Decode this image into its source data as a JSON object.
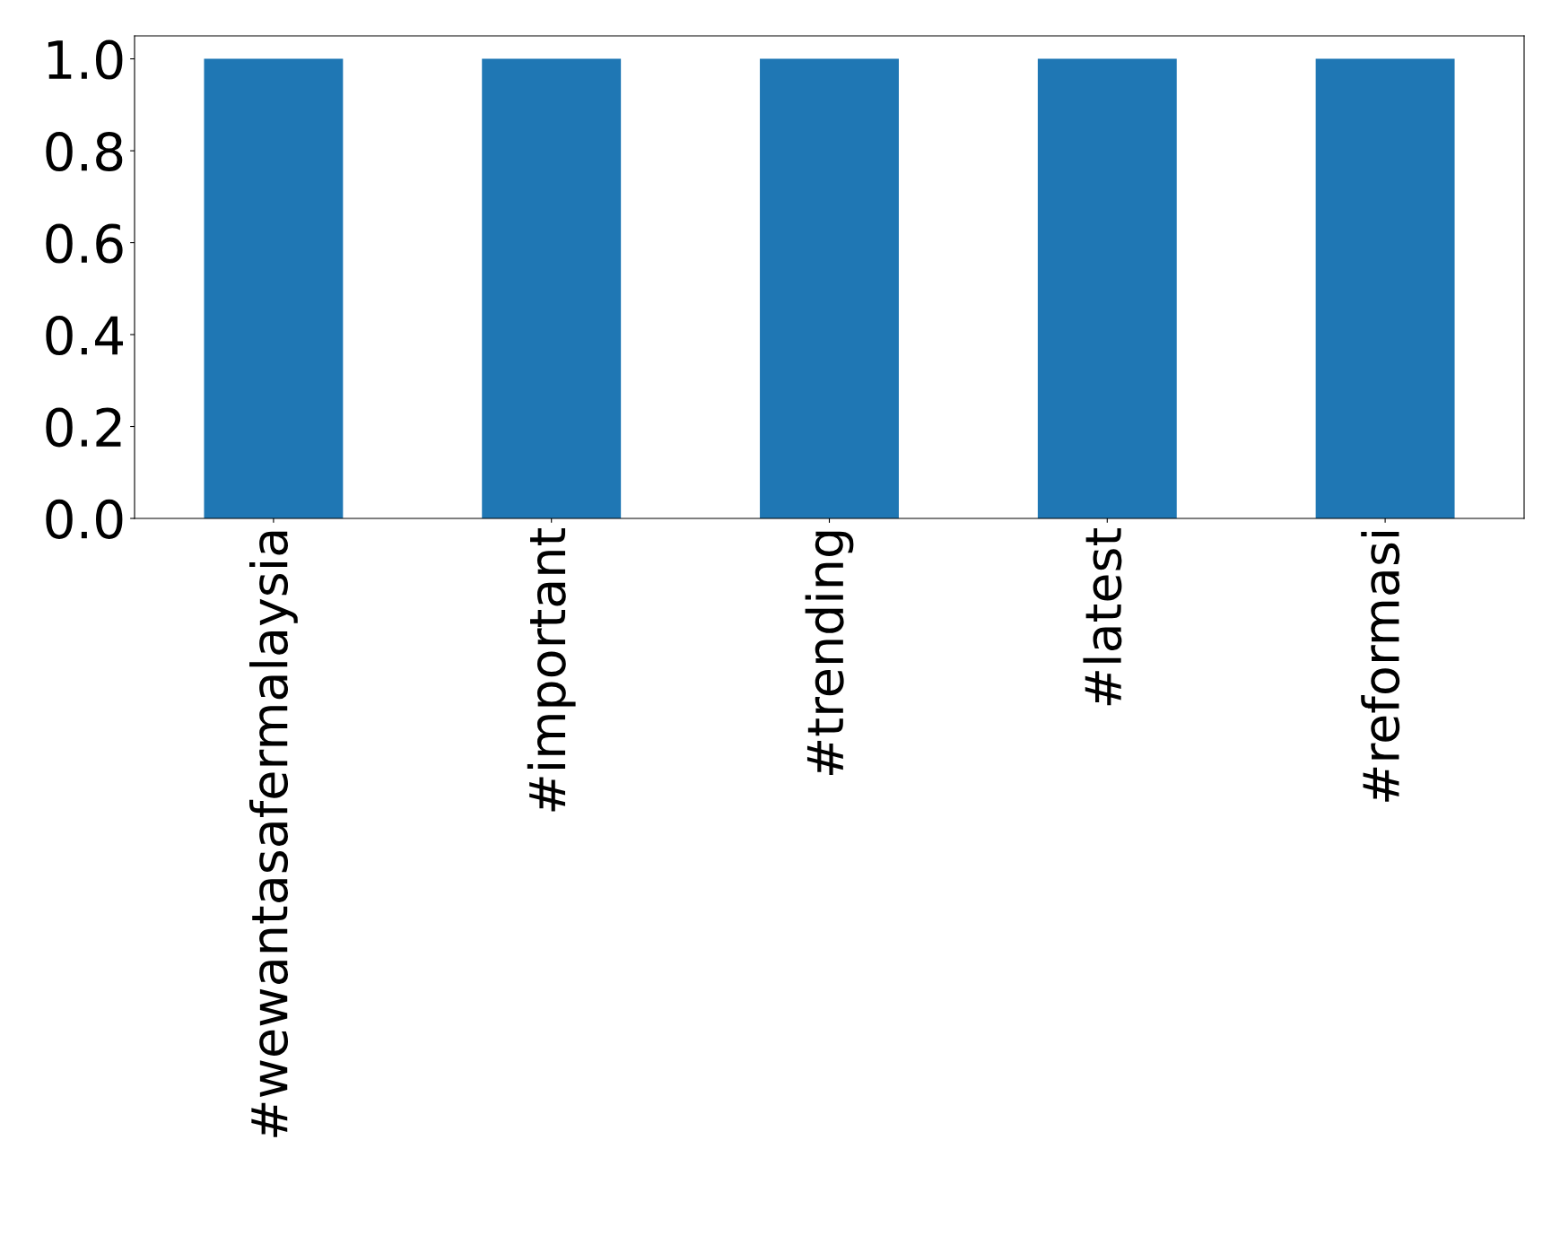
{
  "chart_data": {
    "type": "bar",
    "categories": [
      "#wewantasafermalaysia",
      "#important",
      "#trending",
      "#latest",
      "#reformasi"
    ],
    "values": [
      1,
      1,
      1,
      1,
      1
    ],
    "color": "#1f77b4",
    "ylim": [
      0,
      1.05
    ],
    "yticks": [
      {
        "value": 0,
        "label": "0.0"
      },
      {
        "value": 0.2,
        "label": "0.2"
      },
      {
        "value": 0.4,
        "label": "0.4"
      },
      {
        "value": 0.6,
        "label": "0.6"
      },
      {
        "value": 0.8,
        "label": "0.8"
      },
      {
        "value": 1,
        "label": "1.0"
      }
    ],
    "grid": false,
    "legend": false
  }
}
